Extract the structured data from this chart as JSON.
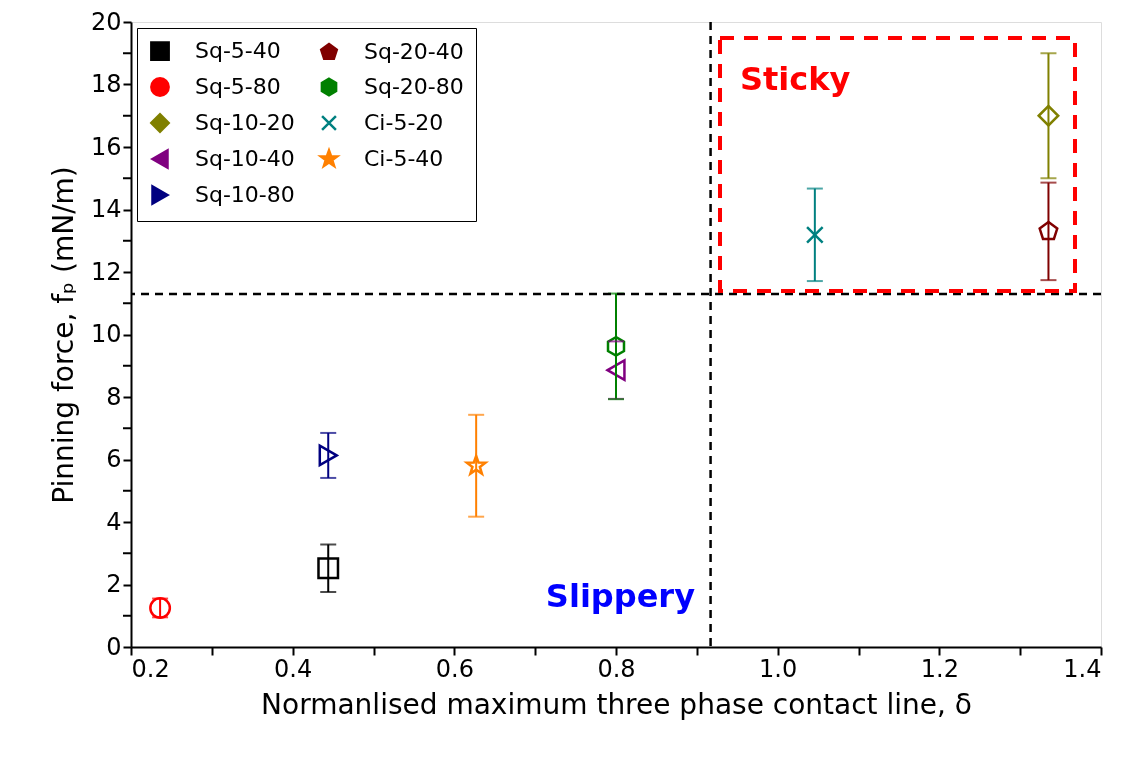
{
  "chart_data": {
    "type": "scatter",
    "xlabel": "Normanlised maximum three phase contact line, δ",
    "ylabel": "Pinning force, fₚ (mN/m)",
    "xlim": [
      0.2,
      1.4
    ],
    "ylim": [
      0,
      20
    ],
    "xticks": [
      0.2,
      {
        "value": 0.3,
        "label": null
      },
      0.4,
      {
        "value": 0.5,
        "label": null
      },
      0.6,
      {
        "value": 0.7,
        "label": null
      },
      0.8,
      {
        "value": 0.9,
        "label": null
      },
      {
        "value": 1.0,
        "label": "1.0"
      },
      {
        "value": 1.1,
        "label": null
      },
      1.2,
      {
        "value": 1.3,
        "label": null
      },
      1.4
    ],
    "yticks": [
      0,
      {
        "value": 1,
        "label": null
      },
      2,
      {
        "value": 3,
        "label": null
      },
      4,
      {
        "value": 5,
        "label": null
      },
      6,
      {
        "value": 7,
        "label": null
      },
      8,
      {
        "value": 9,
        "label": null
      },
      10,
      {
        "value": 11,
        "label": null
      },
      12,
      {
        "value": 13,
        "label": null
      },
      14,
      {
        "value": 15,
        "label": null
      },
      16,
      {
        "value": 17,
        "label": null
      },
      18,
      {
        "value": 19,
        "label": null
      },
      20
    ],
    "grid": false,
    "legend": "top left",
    "series": [
      {
        "name": "Sq-5-40",
        "color": "#000000",
        "marker": "square",
        "x": [
          0.444
        ],
        "values": [
          2.52
        ],
        "errors": [
          0.76
        ]
      },
      {
        "name": "Sq-5-80",
        "color": "#ff0000",
        "marker": "circle",
        "x": [
          0.236
        ],
        "values": [
          1.25
        ],
        "errors": [
          0.3
        ]
      },
      {
        "name": "Sq-10-20",
        "color": "#808000",
        "marker": "diamond",
        "x": [
          1.335
        ],
        "values": [
          17.0
        ],
        "errors": [
          2.0
        ]
      },
      {
        "name": "Sq-10-40",
        "color": "#800080",
        "marker": "triangle-left",
        "x": [
          0.8
        ],
        "values": [
          8.86
        ],
        "errors": [
          0.92
        ]
      },
      {
        "name": "Sq-10-80",
        "color": "#000080",
        "marker": "triangle-right",
        "x": [
          0.444
        ],
        "values": [
          6.13
        ],
        "errors": [
          0.72
        ]
      },
      {
        "name": "Sq-20-40",
        "color": "#800000",
        "x": [
          1.335
        ],
        "values": [
          13.3
        ],
        "errors": [
          1.56
        ]
      },
      {
        "name": "Sq-20-80",
        "color": "#008000",
        "x": [
          0.8
        ],
        "values": [
          9.62
        ],
        "errors": [
          1.69
        ]
      },
      {
        "name": "Ci-5-20",
        "color": "#008080",
        "marker": "cross",
        "x": [
          1.046
        ],
        "values": [
          13.19
        ],
        "errors": [
          1.48
        ]
      },
      {
        "name": "Ci-5-40",
        "color": "#ff8000",
        "marker": "star",
        "x": [
          0.627
        ],
        "values": [
          5.8
        ],
        "errors": [
          1.63
        ]
      }
    ],
    "ref_lines": [
      {
        "axis": "x",
        "value": 0.917,
        "color": "#000000",
        "line_style": "dashed"
      },
      {
        "axis": "y",
        "value": 11.3,
        "color": "#000000",
        "line_style": "dashed"
      }
    ],
    "annotations": [
      "Sticky",
      "Slippery"
    ]
  }
}
